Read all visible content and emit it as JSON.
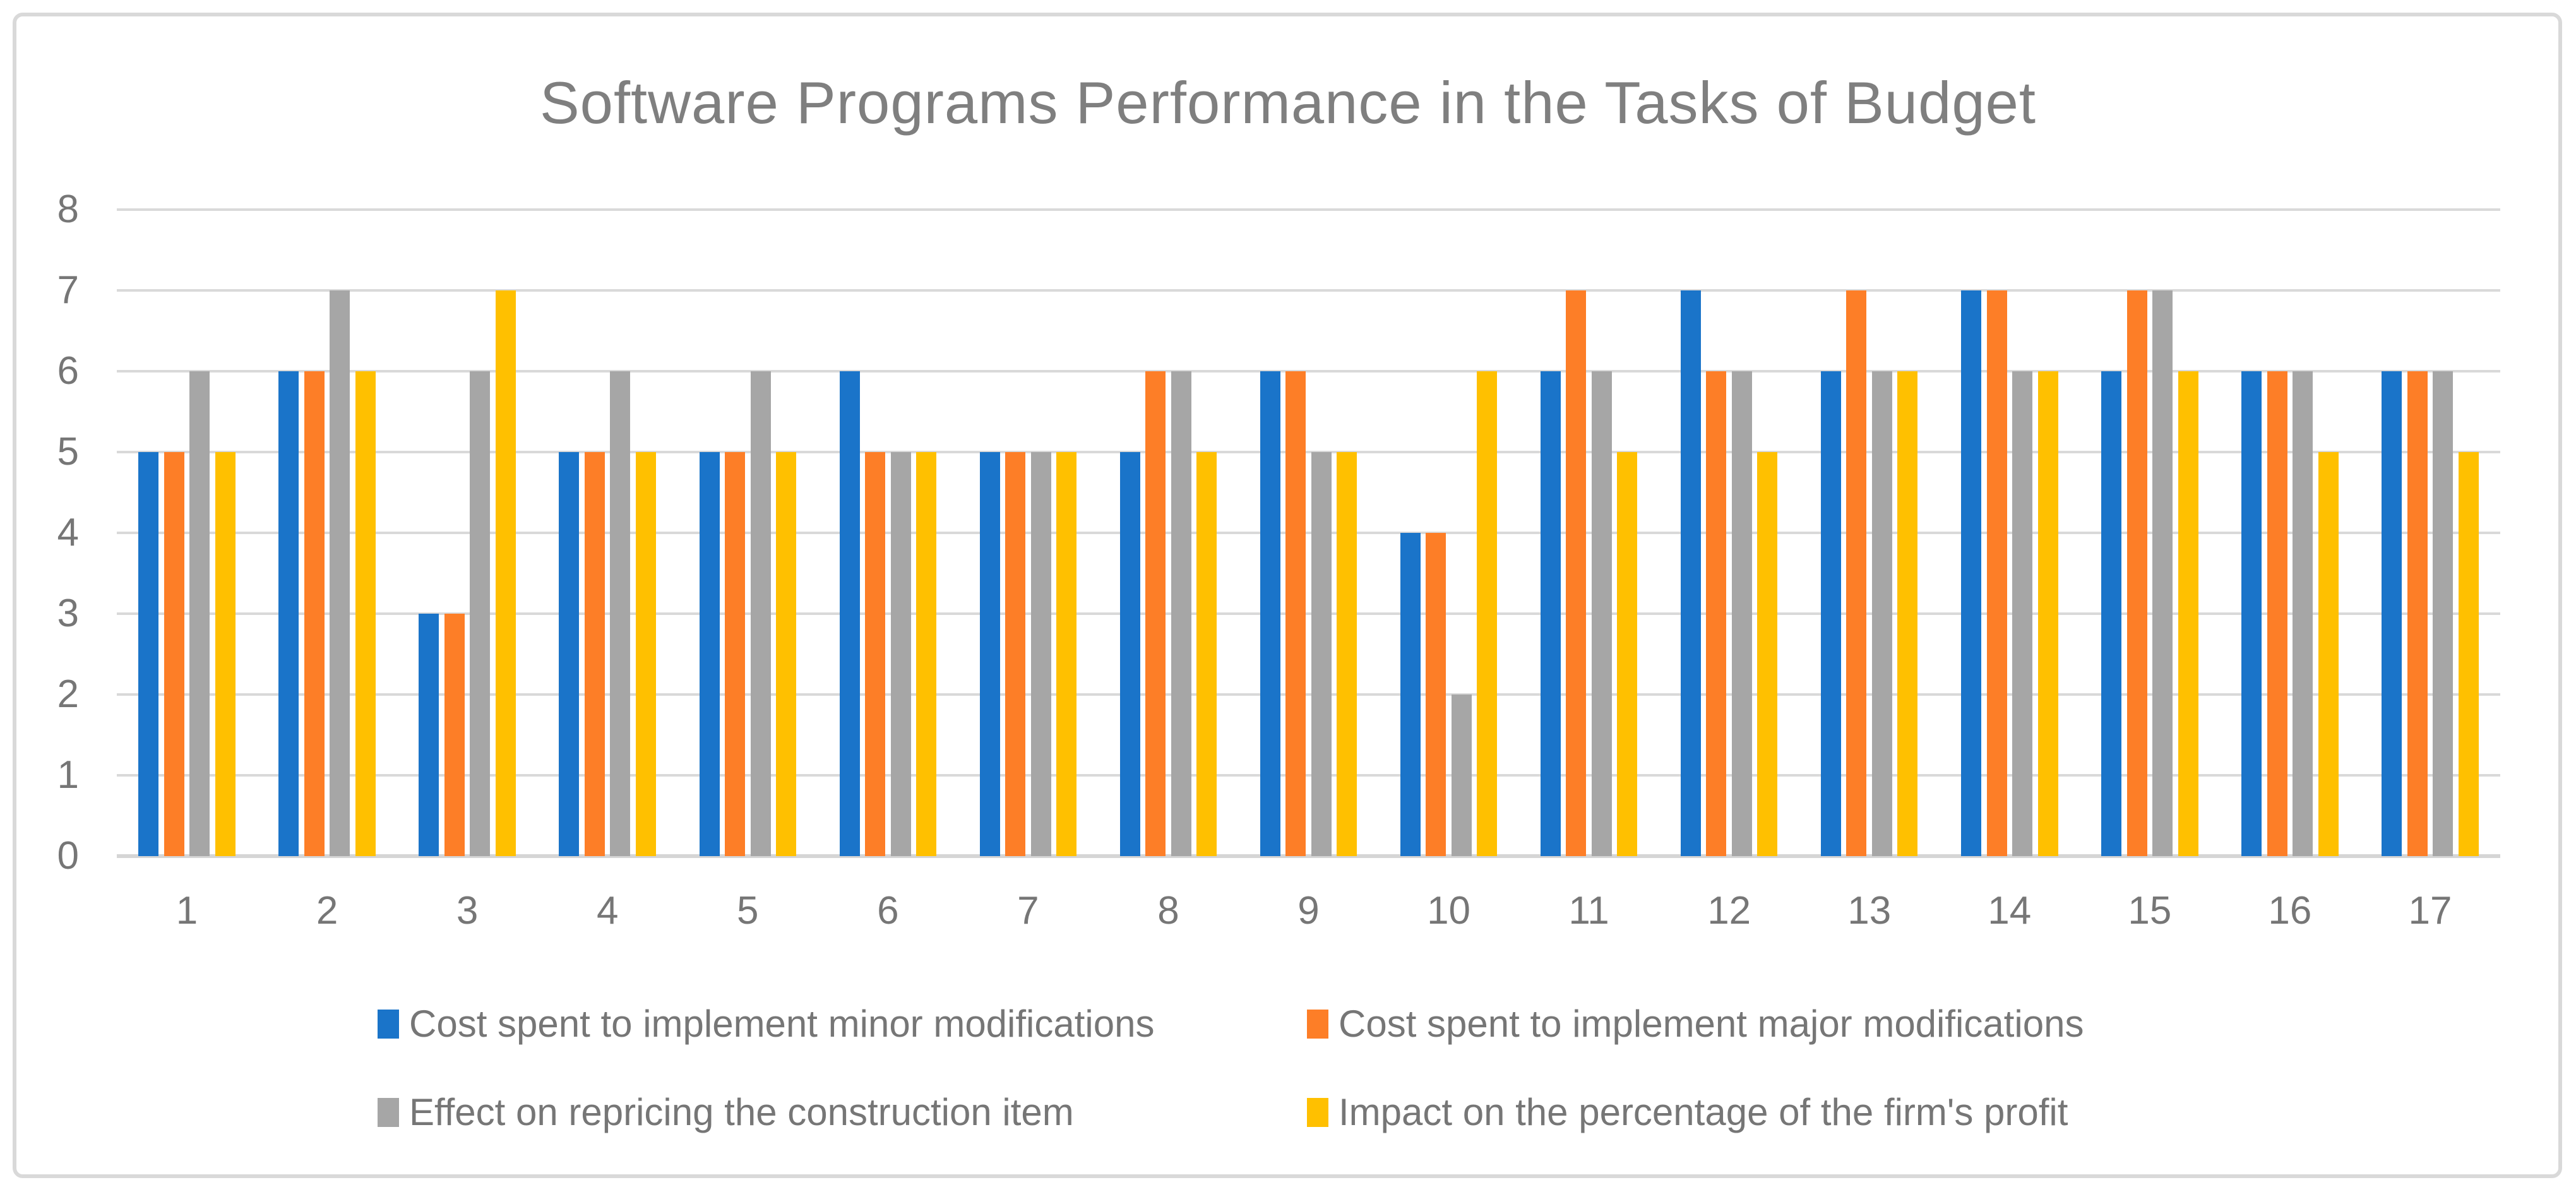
{
  "title": "Software Programs Performance in the Tasks of Budget",
  "colors": {
    "series_blue": "#1A74C9",
    "series_orange": "#FD7E27",
    "series_gray": "#A6A6A6",
    "series_yellow": "#FFC000",
    "gridline": "#D9D9D9",
    "axis_text": "#767676",
    "title_text": "#7F7F7F",
    "frame_border": "#D9D9D9"
  },
  "chart_data": {
    "type": "bar",
    "title": "Software Programs Performance in the Tasks of Budget",
    "xlabel": "",
    "ylabel": "",
    "ylim": [
      0,
      8
    ],
    "yticks": [
      0,
      1,
      2,
      3,
      4,
      5,
      6,
      7,
      8
    ],
    "grid": "horizontal",
    "legend_position": "bottom",
    "categories": [
      "1",
      "2",
      "3",
      "4",
      "5",
      "6",
      "7",
      "8",
      "9",
      "10",
      "11",
      "12",
      "13",
      "14",
      "15",
      "16",
      "17"
    ],
    "series": [
      {
        "name": "Cost spent to implement minor modifications",
        "color": "#1A74C9",
        "values": [
          5,
          6,
          3,
          5,
          5,
          6,
          5,
          5,
          6,
          4,
          6,
          7,
          6,
          7,
          6,
          6,
          6
        ]
      },
      {
        "name": "Cost spent to implement major modifications",
        "color": "#FD7E27",
        "values": [
          5,
          6,
          3,
          5,
          5,
          5,
          5,
          6,
          6,
          4,
          7,
          6,
          7,
          7,
          7,
          6,
          6
        ]
      },
      {
        "name": "Effect on repricing the construction item",
        "color": "#A6A6A6",
        "values": [
          6,
          7,
          6,
          6,
          6,
          5,
          5,
          6,
          5,
          2,
          6,
          6,
          6,
          6,
          7,
          6,
          6
        ]
      },
      {
        "name": "Impact on the percentage of the firm's profit",
        "color": "#FFC000",
        "values": [
          5,
          6,
          7,
          5,
          5,
          5,
          5,
          5,
          5,
          6,
          5,
          5,
          6,
          6,
          6,
          5,
          5
        ]
      }
    ]
  }
}
